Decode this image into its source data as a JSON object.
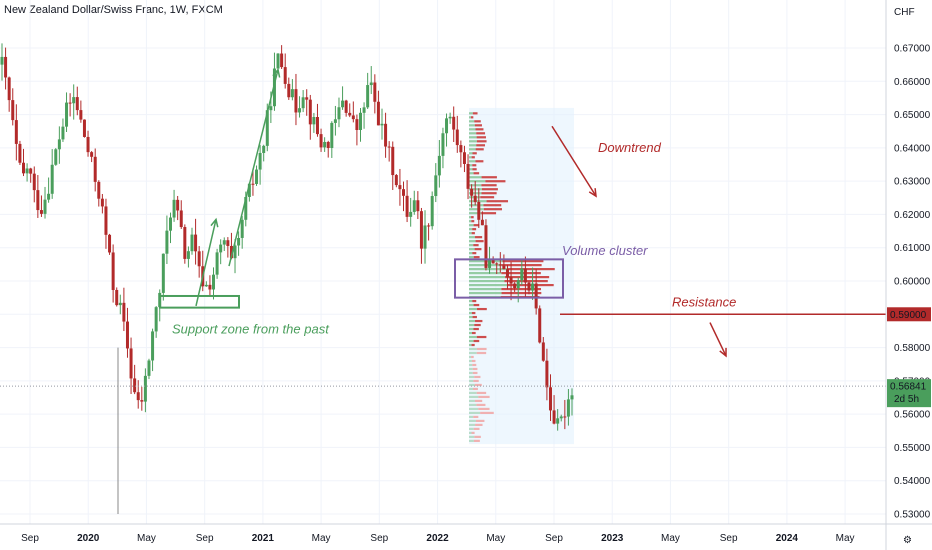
{
  "header": {
    "symbol_line": "New Zealand Dollar/Swiss Franc, 1W, FXCM"
  },
  "colors": {
    "up": "#4a9e5c",
    "down": "#b22a2a",
    "grid": "#f0f3fa",
    "axis_text": "#131722",
    "resistance": "#b22a2a",
    "support_box": "#4a9e5c",
    "cluster_box": "#7b5ea7",
    "volume_bg": "#e3f2fd",
    "price_badge": "#4a9e5c"
  },
  "chart_data": {
    "type": "candlestick",
    "currency_label": "CHF",
    "ylim": [
      0.528,
      0.676
    ],
    "y_ticks": [
      "0.67000",
      "0.66000",
      "0.65000",
      "0.64000",
      "0.63000",
      "0.62000",
      "0.61000",
      "0.60000",
      "0.59000",
      "0.58000",
      "0.57000",
      "0.56000",
      "0.55000",
      "0.54000",
      "0.53000"
    ],
    "x_ticks": [
      {
        "label": "Sep",
        "date": "2019-09"
      },
      {
        "label": "2020",
        "date": "2020-01",
        "bold": true
      },
      {
        "label": "May",
        "date": "2020-05"
      },
      {
        "label": "Sep",
        "date": "2020-09"
      },
      {
        "label": "2021",
        "date": "2021-01",
        "bold": true
      },
      {
        "label": "May",
        "date": "2021-05"
      },
      {
        "label": "Sep",
        "date": "2021-09"
      },
      {
        "label": "2022",
        "date": "2022-01",
        "bold": true
      },
      {
        "label": "May",
        "date": "2022-05"
      },
      {
        "label": "Sep",
        "date": "2022-09"
      },
      {
        "label": "2023",
        "date": "2023-01",
        "bold": true
      },
      {
        "label": "May",
        "date": "2023-05"
      },
      {
        "label": "Sep",
        "date": "2023-09"
      },
      {
        "label": "2024",
        "date": "2024-01",
        "bold": true
      },
      {
        "label": "May",
        "date": "2024-05"
      }
    ],
    "series_path": [
      0.665,
      0.655,
      0.642,
      0.63,
      0.635,
      0.625,
      0.622,
      0.628,
      0.637,
      0.645,
      0.652,
      0.655,
      0.648,
      0.64,
      0.632,
      0.625,
      0.612,
      0.598,
      0.592,
      0.582,
      0.568,
      0.561,
      0.571,
      0.585,
      0.596,
      0.612,
      0.625,
      0.618,
      0.607,
      0.612,
      0.603,
      0.598,
      0.6,
      0.608,
      0.612,
      0.605,
      0.61,
      0.622,
      0.628,
      0.635,
      0.642,
      0.655,
      0.667,
      0.664,
      0.656,
      0.652,
      0.658,
      0.65,
      0.645,
      0.64,
      0.643,
      0.648,
      0.655,
      0.65,
      0.645,
      0.65,
      0.66,
      0.653,
      0.645,
      0.638,
      0.632,
      0.625,
      0.62,
      0.626,
      0.612,
      0.618,
      0.63,
      0.642,
      0.65,
      0.645,
      0.638,
      0.63,
      0.625,
      0.618,
      0.605,
      0.603,
      0.607,
      0.604,
      0.598,
      0.602,
      0.6,
      0.597,
      0.585,
      0.57,
      0.56,
      0.555,
      0.562,
      0.568
    ],
    "annotations": [
      {
        "text": "Downtrend",
        "color": "#b22a2a"
      },
      {
        "text": "Volume cluster",
        "color": "#7b5ea7"
      },
      {
        "text": "Resistance",
        "color": "#b22a2a"
      },
      {
        "text": "Support zone from the past",
        "color": "#4a9e5c"
      }
    ],
    "resistance_level": "0.59000",
    "last_price": "0.56841",
    "countdown": "2d 5h",
    "support_zone": [
      0.5955,
      0.592
    ],
    "volume_cluster": [
      0.6065,
      0.595
    ]
  }
}
